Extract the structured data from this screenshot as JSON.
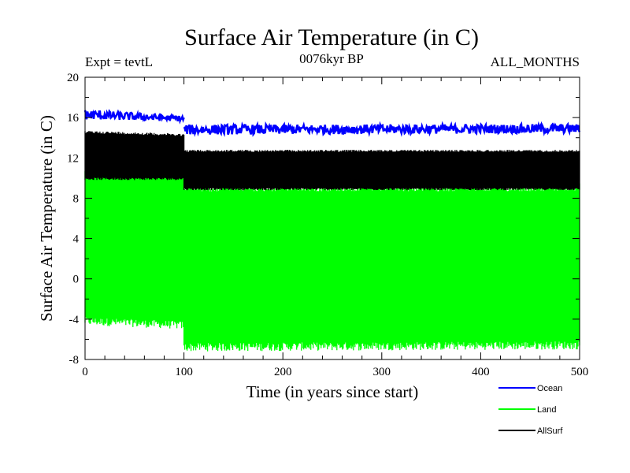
{
  "chart_data": {
    "type": "line",
    "title": "Surface Air Temperature (in C)",
    "subtitle": "0076kyr BP",
    "experiment_label": "Expt = tevtL",
    "months_label": "ALL_MONTHS",
    "xlabel": "Time (in years since start)",
    "ylabel": "Surface Air Temperature (in C)",
    "xlim": [
      0,
      500
    ],
    "ylim": [
      -8,
      20
    ],
    "xticks": [
      0,
      100,
      200,
      300,
      400,
      500
    ],
    "yticks": [
      -8,
      -4,
      0,
      4,
      8,
      12,
      16,
      20
    ],
    "grid": false,
    "legend_position": "bottom-right",
    "series": [
      {
        "name": "Ocean",
        "color": "#0000ff",
        "segments": [
          {
            "x": [
              0,
              100
            ],
            "mean": [
              16.3,
              15.9
            ],
            "low": [
              15.7,
              15.6
            ],
            "high": [
              16.8,
              16.2
            ]
          },
          {
            "x": [
              100,
              500
            ],
            "mean": [
              14.8,
              14.9
            ],
            "low": [
              14.3,
              14.4
            ],
            "high": [
              15.4,
              15.4
            ]
          }
        ]
      },
      {
        "name": "Land",
        "color": "#00ff00",
        "segments": [
          {
            "x": [
              0,
              100
            ],
            "low": [
              -4.6,
              -5.0
            ],
            "high": [
              11.2,
              10.8
            ]
          },
          {
            "x": [
              100,
              500
            ],
            "low": [
              -7.2,
              -7.0
            ],
            "high": [
              9.5,
              9.5
            ]
          }
        ]
      },
      {
        "name": "AllSurf",
        "color": "#000000",
        "segments": [
          {
            "x": [
              0,
              100
            ],
            "low": [
              9.8,
              9.8
            ],
            "high": [
              14.7,
              14.4
            ]
          },
          {
            "x": [
              100,
              500
            ],
            "low": [
              8.8,
              8.8
            ],
            "high": [
              12.8,
              12.8
            ]
          }
        ]
      }
    ]
  }
}
